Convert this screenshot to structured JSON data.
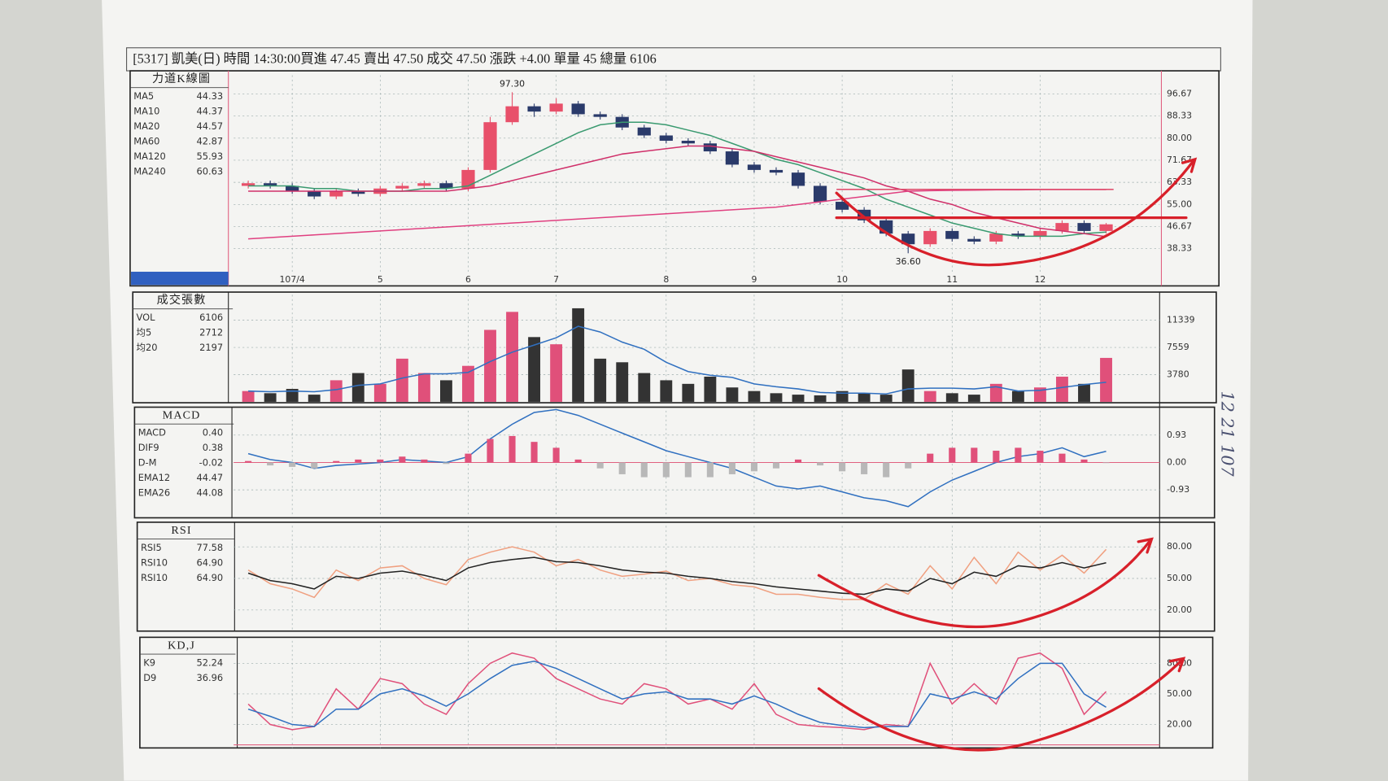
{
  "header": "[5317] 凱美(日) 時間 14:30:00買進 47.45  賣出 47.50  成交 47.50 漲跌 +4.00 單量 45    總量 6106",
  "note": "12 21 107",
  "chart_data": [
    {
      "type": "candlestick",
      "title": "力道K線圖",
      "categories": [
        null,
        null,
        "107/4",
        null,
        null,
        null,
        "5",
        null,
        null,
        null,
        "6",
        null,
        null,
        null,
        "7",
        null,
        null,
        null,
        null,
        "8",
        null,
        null,
        null,
        "9",
        null,
        null,
        null,
        "10",
        null,
        null,
        null,
        null,
        "11",
        null,
        null,
        null,
        "12",
        null,
        null,
        null
      ],
      "open": [
        62,
        63,
        62,
        60,
        58,
        60,
        59,
        61,
        62,
        63,
        61,
        68,
        86,
        92,
        90,
        93,
        89,
        88,
        84,
        81,
        79,
        78,
        75,
        70,
        68,
        67,
        62,
        56,
        53,
        49,
        44,
        40,
        45,
        42,
        41,
        44,
        43,
        45,
        48,
        45
      ],
      "high": [
        64,
        64,
        63,
        61,
        61,
        61,
        62,
        63,
        64,
        64,
        69,
        88,
        97.3,
        93,
        95,
        94,
        90,
        89,
        85,
        82,
        80,
        79,
        76,
        71,
        69,
        68,
        63,
        57,
        54,
        50,
        45,
        46,
        46,
        43,
        45,
        45,
        46,
        49,
        49,
        48
      ],
      "low": [
        61,
        61,
        59,
        57,
        57,
        58,
        58,
        60,
        61,
        60,
        60,
        67,
        85,
        88,
        89,
        88,
        87,
        83,
        80,
        78,
        77,
        74,
        69,
        67,
        66,
        61,
        55,
        52,
        48,
        43,
        36.6,
        39,
        41,
        40,
        40,
        42,
        42,
        44,
        44,
        44
      ],
      "close": [
        63,
        62,
        60,
        58,
        60,
        59,
        61,
        62,
        63,
        61,
        68,
        86,
        92,
        90,
        93,
        89,
        88,
        84,
        81,
        79,
        78,
        75,
        70,
        68,
        67,
        62,
        56,
        53,
        49,
        44,
        40,
        45,
        42,
        41,
        44,
        43,
        45,
        48,
        45,
        47.5
      ],
      "up_color": "#e8506a",
      "down_color": "#2a3a6a",
      "series": [
        {
          "name": "MA5",
          "latest": "44.33",
          "color": "#3060c0"
        },
        {
          "name": "MA10",
          "latest": "44.37",
          "color": "#d8c860"
        },
        {
          "name": "MA20",
          "latest": "44.57",
          "color": "#3a9a70",
          "type": "line",
          "values": [
            62,
            62,
            62,
            61,
            61,
            60,
            60,
            60,
            61,
            61,
            62,
            66,
            70,
            74,
            78,
            82,
            85,
            86,
            86,
            85,
            83,
            81,
            78,
            75,
            72,
            70,
            67,
            64,
            61,
            57,
            54,
            51,
            48,
            46,
            44,
            43,
            43,
            43,
            44,
            44.57
          ]
        },
        {
          "name": "MA60",
          "latest": "42.87",
          "color": "#d0306a",
          "type": "line",
          "values": [
            60,
            60,
            60,
            60,
            60,
            60,
            60,
            60,
            60,
            60,
            61,
            62,
            64,
            66,
            68,
            70,
            72,
            74,
            75,
            76,
            77,
            77,
            76,
            75,
            73,
            71,
            69,
            67,
            65,
            62,
            60,
            57,
            55,
            52,
            50,
            48,
            46,
            45,
            44,
            42.87
          ]
        },
        {
          "name": "MA120",
          "latest": "55.93",
          "color": "#f0a0b8"
        },
        {
          "name": "MA240",
          "latest": "60.63",
          "color": "#e04080",
          "type": "line",
          "values": [
            42,
            42.5,
            43,
            43.5,
            44,
            44.5,
            45,
            45.5,
            46,
            46.5,
            47,
            47.5,
            48,
            48.5,
            49,
            49.5,
            50,
            50.5,
            51,
            51.5,
            52,
            52.5,
            53,
            53.5,
            54,
            55,
            56,
            57,
            58,
            59,
            60,
            60.2,
            60.3,
            60.4,
            60.5,
            60.5,
            60.6,
            60.6,
            60.6,
            60.63
          ]
        }
      ],
      "annotations": [
        {
          "label": "97.30",
          "value": 97.3
        },
        {
          "label": "36.60",
          "value": 36.6
        }
      ],
      "ylim": [
        29.3,
        103.7
      ],
      "yticks": [
        96.67,
        88.33,
        {
          "value": 80,
          "label": "80.00"
        },
        71.67,
        63.33,
        {
          "value": 55,
          "label": "55.00"
        },
        46.67,
        38.33
      ],
      "grid": true
    },
    {
      "type": "bar",
      "title": "成交張數",
      "up_color": "#e0507a",
      "down_color": "#333333",
      "series": [
        {
          "name": "VOL",
          "latest": "6106",
          "color": "#3060c0",
          "type": "bar",
          "values": [
            1500,
            1200,
            1800,
            1000,
            3000,
            4000,
            2500,
            6000,
            4000,
            3000,
            5000,
            10000,
            12500,
            9000,
            8000,
            13000,
            6000,
            5500,
            4000,
            3000,
            2500,
            3500,
            2000,
            1500,
            1200,
            1000,
            900,
            1500,
            1200,
            1000,
            4500,
            1500,
            1200,
            1000,
            2500,
            1500,
            2000,
            3500,
            2500,
            6106
          ]
        },
        {
          "name": "均5",
          "latest": "2712",
          "color": "#3070c0",
          "type": "line",
          "values": [
            1500,
            1400,
            1500,
            1400,
            1700,
            2300,
            2500,
            3300,
            3900,
            3900,
            4100,
            5600,
            6900,
            7900,
            8900,
            10500,
            9700,
            8300,
            7300,
            5500,
            4200,
            3700,
            3400,
            2500,
            2100,
            1800,
            1300,
            1200,
            1200,
            1100,
            1800,
            1900,
            1900,
            1800,
            2100,
            1500,
            1600,
            2000,
            2400,
            2712
          ]
        },
        {
          "name": "均20",
          "latest": "2197",
          "color": "#d8c860"
        }
      ],
      "ylim": [
        0,
        14880
      ],
      "yticks": [
        11339,
        7559,
        3780
      ],
      "grid": true
    },
    {
      "type": "bar",
      "title": "MACD",
      "series": [
        {
          "name": "MACD",
          "latest": "0.40",
          "color": "#d8c860"
        },
        {
          "name": "DIF9",
          "latest": "0.38",
          "color": "#3070c0",
          "type": "line",
          "values": [
            0.3,
            0.1,
            0,
            -0.2,
            -0.1,
            -0.05,
            0,
            0.1,
            0.05,
            0,
            0.2,
            0.8,
            1.3,
            1.7,
            1.8,
            1.6,
            1.3,
            1.0,
            0.7,
            0.4,
            0.2,
            0,
            -0.2,
            -0.5,
            -0.8,
            -0.9,
            -0.8,
            -1.0,
            -1.2,
            -1.3,
            -1.5,
            -1.0,
            -0.6,
            -0.3,
            0,
            0.2,
            0.3,
            0.5,
            0.2,
            0.38
          ]
        },
        {
          "name": "D-M",
          "latest": "-0.02",
          "color": "#e0507a",
          "neg_color": "#b8b8b8",
          "type": "bar",
          "values": [
            0.05,
            -0.1,
            -0.15,
            -0.2,
            0.05,
            0.1,
            0.1,
            0.2,
            0.1,
            -0.05,
            0.3,
            0.8,
            0.9,
            0.7,
            0.5,
            0.1,
            -0.2,
            -0.4,
            -0.5,
            -0.5,
            -0.5,
            -0.5,
            -0.4,
            -0.3,
            -0.2,
            0.1,
            -0.1,
            -0.3,
            -0.4,
            -0.5,
            -0.2,
            0.3,
            0.5,
            0.5,
            0.4,
            0.5,
            0.4,
            0.3,
            0.1,
            -0.02
          ]
        },
        {
          "name": "EMA12",
          "latest": "44.47",
          "color": "#3070c0"
        },
        {
          "name": "EMA26",
          "latest": "44.08",
          "color": "#e04080"
        }
      ],
      "ylim": [
        -1.82,
        1.76
      ],
      "yticks": [
        0.93,
        {
          "value": 0,
          "label": "0.00"
        },
        -0.93
      ],
      "grid": true
    },
    {
      "type": "line",
      "title": "RSI",
      "series": [
        {
          "name": "RSI5",
          "latest": "77.58",
          "color": "#f0a080",
          "type": "line",
          "values": [
            58,
            45,
            40,
            32,
            58,
            48,
            60,
            62,
            50,
            44,
            68,
            75,
            80,
            75,
            62,
            68,
            58,
            52,
            54,
            57,
            48,
            50,
            44,
            42,
            35,
            35,
            32,
            30,
            30,
            45,
            35,
            62,
            40,
            70,
            45,
            75,
            58,
            72,
            55,
            77.58
          ]
        },
        {
          "name": "RSI10",
          "latest": "64.90",
          "color": "#3a9a70"
        },
        {
          "name": "RSI10",
          "latest": "64.90",
          "color": "#222222",
          "type": "line",
          "values": [
            55,
            48,
            45,
            40,
            52,
            50,
            55,
            57,
            53,
            48,
            60,
            65,
            68,
            70,
            66,
            65,
            62,
            58,
            56,
            55,
            52,
            50,
            47,
            45,
            42,
            40,
            38,
            36,
            35,
            40,
            38,
            50,
            45,
            56,
            52,
            62,
            60,
            65,
            60,
            64.9
          ]
        }
      ],
      "ylim": [
        0,
        100
      ],
      "yticks": [
        {
          "value": 80,
          "label": "80.00"
        },
        {
          "value": 50,
          "label": "50.00"
        },
        {
          "value": 20,
          "label": "20.00"
        }
      ],
      "grid": true
    },
    {
      "type": "line",
      "title": "KD,J",
      "series": [
        {
          "name": "K9",
          "latest": "52.24",
          "color": "#e0507a",
          "type": "line",
          "values": [
            40,
            20,
            15,
            18,
            55,
            35,
            65,
            60,
            40,
            30,
            60,
            80,
            90,
            85,
            65,
            55,
            45,
            40,
            60,
            55,
            40,
            45,
            35,
            60,
            30,
            20,
            18,
            17,
            15,
            20,
            18,
            80,
            40,
            60,
            40,
            85,
            90,
            75,
            30,
            52.24
          ]
        },
        {
          "name": "D9",
          "latest": "36.96",
          "color": "#3070c0",
          "type": "line",
          "values": [
            35,
            28,
            20,
            18,
            35,
            35,
            50,
            55,
            48,
            38,
            50,
            65,
            78,
            82,
            75,
            65,
            55,
            45,
            50,
            52,
            45,
            45,
            40,
            48,
            40,
            30,
            22,
            19,
            17,
            18,
            18,
            50,
            45,
            52,
            45,
            65,
            80,
            80,
            50,
            36.96
          ]
        }
      ],
      "ylim": [
        -3,
        102
      ],
      "yticks": [
        {
          "value": 80,
          "label": "80.00"
        },
        {
          "value": 50,
          "label": "50.00"
        },
        {
          "value": 20,
          "label": "20.00"
        }
      ],
      "grid": true
    }
  ]
}
